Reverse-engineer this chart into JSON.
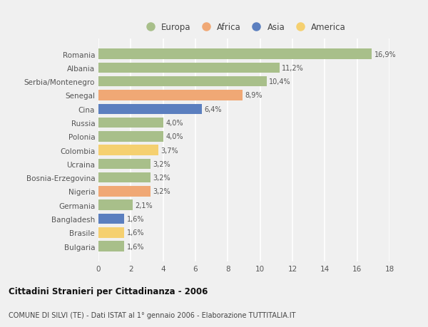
{
  "categories": [
    "Romania",
    "Albania",
    "Serbia/Montenegro",
    "Senegal",
    "Cina",
    "Russia",
    "Polonia",
    "Colombia",
    "Ucraina",
    "Bosnia-Erzegovina",
    "Nigeria",
    "Germania",
    "Bangladesh",
    "Brasile",
    "Bulgaria"
  ],
  "values": [
    16.9,
    11.2,
    10.4,
    8.9,
    6.4,
    4.0,
    4.0,
    3.7,
    3.2,
    3.2,
    3.2,
    2.1,
    1.6,
    1.6,
    1.6
  ],
  "labels": [
    "16,9%",
    "11,2%",
    "10,4%",
    "8,9%",
    "6,4%",
    "4,0%",
    "4,0%",
    "3,7%",
    "3,2%",
    "3,2%",
    "3,2%",
    "2,1%",
    "1,6%",
    "1,6%",
    "1,6%"
  ],
  "colors": [
    "#a8bf8a",
    "#a8bf8a",
    "#a8bf8a",
    "#f0a875",
    "#5b7fbf",
    "#a8bf8a",
    "#a8bf8a",
    "#f5d070",
    "#a8bf8a",
    "#a8bf8a",
    "#f0a875",
    "#a8bf8a",
    "#5b7fbf",
    "#f5d070",
    "#a8bf8a"
  ],
  "legend_labels": [
    "Europa",
    "Africa",
    "Asia",
    "America"
  ],
  "legend_colors": [
    "#a8bf8a",
    "#f0a875",
    "#5b7fbf",
    "#f5d070"
  ],
  "title": "Cittadini Stranieri per Cittadinanza - 2006",
  "subtitle": "COMUNE DI SILVI (TE) - Dati ISTAT al 1° gennaio 2006 - Elaborazione TUTTITALIA.IT",
  "xlim": [
    0,
    18
  ],
  "xticks": [
    0,
    2,
    4,
    6,
    8,
    10,
    12,
    14,
    16,
    18
  ],
  "background_color": "#f0f0f0",
  "grid_color": "#ffffff",
  "bar_height": 0.75
}
